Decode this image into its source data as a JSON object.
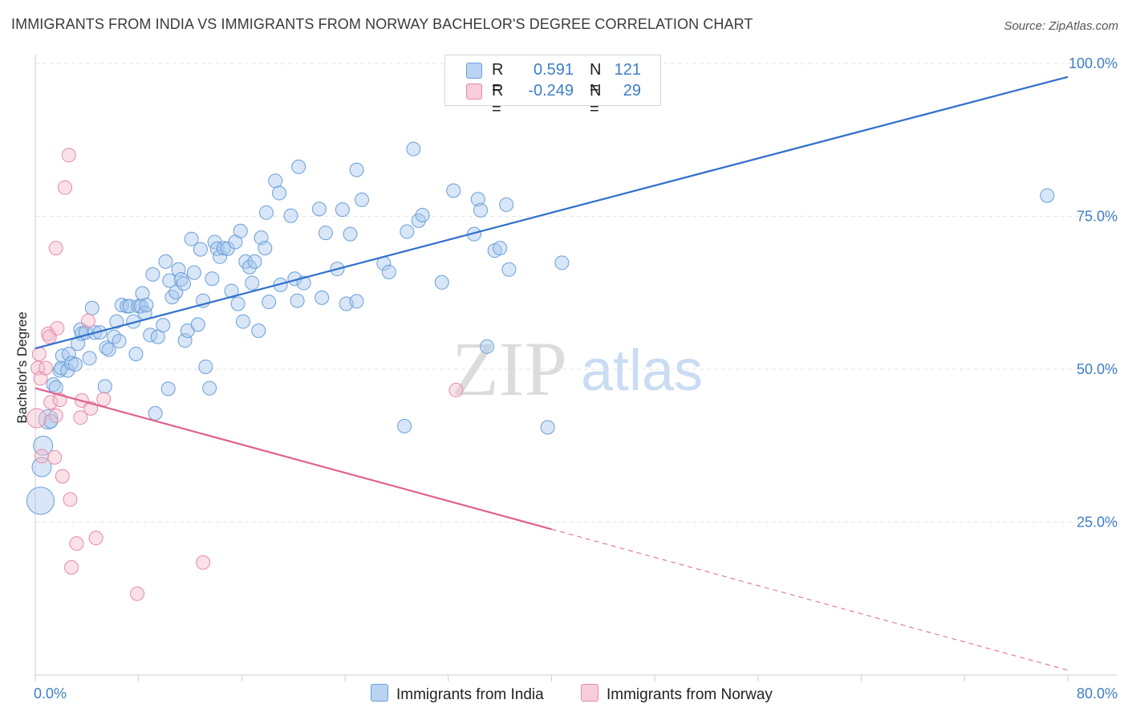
{
  "title": "IMMIGRANTS FROM INDIA VS IMMIGRANTS FROM NORWAY BACHELOR'S DEGREE CORRELATION CHART",
  "source": "Source: ZipAtlas.com",
  "watermark": {
    "zip": "ZIP",
    "atlas": "atlas"
  },
  "colors": {
    "india_fill": "#a9c8ee",
    "india_stroke": "#6a9fd8",
    "india_line": "#2f6fcc",
    "norway_fill": "#f5bccd",
    "norway_stroke": "#e58aa8",
    "norway_line": "#e0628e",
    "tick_text": "#3f7ec6",
    "grid": "#e3e3e3"
  },
  "stats": {
    "india": {
      "r_label": "R =",
      "r_value": "0.591",
      "n_label": "N =",
      "n_value": "121"
    },
    "norway": {
      "r_label": "R =",
      "r_value": "-0.249",
      "n_label": "N =",
      "n_value": "29"
    }
  },
  "legend": {
    "india": "Immigrants from India",
    "norway": "Immigrants from Norway"
  },
  "chart_data": {
    "type": "scatter",
    "title": "IMMIGRANTS FROM INDIA VS IMMIGRANTS FROM NORWAY BACHELOR'S DEGREE CORRELATION CHART",
    "xlabel": "",
    "ylabel": "Bachelor's Degree",
    "xlim": [
      0,
      80
    ],
    "ylim": [
      0,
      100
    ],
    "x_tick_labels": [
      "0.0%",
      "80.0%"
    ],
    "y_ticks": [
      25,
      50,
      75,
      100
    ],
    "y_tick_labels": [
      "25.0%",
      "50.0%",
      "75.0%",
      "100.0%"
    ],
    "grid": true,
    "legend_position": "bottom-center",
    "series": [
      {
        "name": "Immigrants from India",
        "r": 0.591,
        "n": 121,
        "trend": {
          "x": [
            0,
            80
          ],
          "y": [
            53.4,
            97.8
          ]
        },
        "points": [
          [
            0.4,
            28.5,
            3
          ],
          [
            0.5,
            34.0,
            2
          ],
          [
            0.6,
            37.5,
            2
          ],
          [
            1.0,
            41.8,
            2
          ],
          [
            1.2,
            41.5,
            1
          ],
          [
            1.4,
            47.5,
            1
          ],
          [
            1.6,
            47.0,
            1
          ],
          [
            1.9,
            49.8,
            1
          ],
          [
            2.0,
            50.2,
            1
          ],
          [
            2.1,
            52.2,
            1
          ],
          [
            2.5,
            49.8,
            1
          ],
          [
            2.6,
            52.5,
            1
          ],
          [
            2.8,
            51.0,
            1
          ],
          [
            3.1,
            50.8,
            1
          ],
          [
            3.3,
            54.2,
            1
          ],
          [
            3.5,
            56.5,
            1
          ],
          [
            3.6,
            55.8,
            1
          ],
          [
            3.9,
            56.0,
            1
          ],
          [
            4.2,
            51.8,
            1
          ],
          [
            4.4,
            60.0,
            1
          ],
          [
            4.6,
            56.0,
            1
          ],
          [
            5.0,
            56.0,
            1
          ],
          [
            5.4,
            47.2,
            1
          ],
          [
            5.5,
            53.5,
            1
          ],
          [
            5.7,
            53.2,
            1
          ],
          [
            6.1,
            55.3,
            1
          ],
          [
            6.3,
            57.8,
            1
          ],
          [
            6.5,
            54.6,
            1
          ],
          [
            6.7,
            60.5,
            1
          ],
          [
            7.1,
            60.3,
            1
          ],
          [
            7.3,
            60.3,
            1
          ],
          [
            7.6,
            57.8,
            1
          ],
          [
            7.8,
            52.5,
            1
          ],
          [
            8.0,
            60.3,
            1
          ],
          [
            8.2,
            60.3,
            1
          ],
          [
            8.3,
            62.4,
            1
          ],
          [
            8.5,
            59.2,
            1
          ],
          [
            8.6,
            60.5,
            1
          ],
          [
            8.9,
            55.6,
            1
          ],
          [
            9.1,
            65.5,
            1
          ],
          [
            9.3,
            42.8,
            1
          ],
          [
            9.5,
            55.3,
            1
          ],
          [
            9.9,
            57.2,
            1
          ],
          [
            10.1,
            67.6,
            1
          ],
          [
            10.3,
            46.8,
            1
          ],
          [
            10.4,
            64.5,
            1
          ],
          [
            10.6,
            61.8,
            1
          ],
          [
            10.9,
            62.6,
            1
          ],
          [
            11.1,
            66.3,
            1
          ],
          [
            11.3,
            64.7,
            1
          ],
          [
            11.5,
            64.0,
            1
          ],
          [
            11.6,
            54.7,
            1
          ],
          [
            11.8,
            56.3,
            1
          ],
          [
            12.1,
            71.3,
            1
          ],
          [
            12.3,
            65.8,
            1
          ],
          [
            12.6,
            57.3,
            1
          ],
          [
            12.8,
            69.6,
            1
          ],
          [
            13.0,
            61.2,
            1
          ],
          [
            13.2,
            50.4,
            1
          ],
          [
            13.5,
            46.9,
            1
          ],
          [
            13.7,
            64.8,
            1
          ],
          [
            13.9,
            70.8,
            1
          ],
          [
            14.1,
            69.7,
            1
          ],
          [
            14.3,
            68.4,
            1
          ],
          [
            14.6,
            69.8,
            1
          ],
          [
            14.9,
            69.7,
            1
          ],
          [
            15.2,
            62.8,
            1
          ],
          [
            15.5,
            70.8,
            1
          ],
          [
            15.7,
            60.7,
            1
          ],
          [
            15.9,
            72.6,
            1
          ],
          [
            16.1,
            57.8,
            1
          ],
          [
            16.3,
            67.6,
            1
          ],
          [
            16.6,
            66.7,
            1
          ],
          [
            16.8,
            64.1,
            1
          ],
          [
            17.0,
            67.6,
            1
          ],
          [
            17.3,
            56.3,
            1
          ],
          [
            17.5,
            71.5,
            1
          ],
          [
            17.8,
            69.8,
            1
          ],
          [
            17.9,
            75.6,
            1
          ],
          [
            18.1,
            61.0,
            1
          ],
          [
            18.6,
            80.8,
            1
          ],
          [
            18.9,
            78.8,
            1
          ],
          [
            19.0,
            63.8,
            1
          ],
          [
            19.8,
            75.1,
            1
          ],
          [
            20.1,
            64.8,
            1
          ],
          [
            20.3,
            61.2,
            1
          ],
          [
            20.4,
            83.1,
            1
          ],
          [
            20.8,
            64.1,
            1
          ],
          [
            22.0,
            76.2,
            1
          ],
          [
            22.2,
            61.7,
            1
          ],
          [
            22.5,
            72.3,
            1
          ],
          [
            23.4,
            66.4,
            1
          ],
          [
            23.8,
            76.1,
            1
          ],
          [
            24.1,
            60.7,
            1
          ],
          [
            24.4,
            72.1,
            1
          ],
          [
            24.9,
            61.1,
            1
          ],
          [
            24.9,
            82.6,
            1
          ],
          [
            25.3,
            77.7,
            1
          ],
          [
            27.0,
            67.3,
            1
          ],
          [
            27.4,
            65.9,
            1
          ],
          [
            28.6,
            40.7,
            1
          ],
          [
            28.8,
            72.5,
            1
          ],
          [
            29.3,
            86.0,
            1
          ],
          [
            29.7,
            74.3,
            1
          ],
          [
            30.0,
            75.2,
            1
          ],
          [
            31.5,
            64.2,
            1
          ],
          [
            32.4,
            79.2,
            1
          ],
          [
            34.0,
            72.1,
            1
          ],
          [
            34.3,
            77.8,
            1
          ],
          [
            34.5,
            76.0,
            1
          ],
          [
            35.0,
            53.7,
            1
          ],
          [
            35.6,
            69.4,
            1
          ],
          [
            36.0,
            69.8,
            1
          ],
          [
            36.5,
            76.9,
            1
          ],
          [
            36.7,
            66.3,
            1
          ],
          [
            39.7,
            40.5,
            1
          ],
          [
            40.8,
            67.4,
            1
          ],
          [
            78.4,
            78.4,
            1
          ]
        ]
      },
      {
        "name": "Immigrants from Norway",
        "r": -0.249,
        "n": 29,
        "trend": {
          "x": [
            0,
            80
          ],
          "y": [
            46.9,
            0.8
          ]
        },
        "points": [
          [
            0.1,
            42.0,
            2
          ],
          [
            0.2,
            50.2,
            1
          ],
          [
            0.3,
            52.5,
            1
          ],
          [
            0.4,
            48.5,
            1
          ],
          [
            0.5,
            35.8,
            1
          ],
          [
            0.8,
            50.2,
            1
          ],
          [
            1.0,
            55.8,
            1
          ],
          [
            1.1,
            55.3,
            1
          ],
          [
            1.2,
            44.6,
            1
          ],
          [
            1.5,
            35.6,
            1
          ],
          [
            1.6,
            42.4,
            1
          ],
          [
            1.7,
            56.7,
            1
          ],
          [
            1.9,
            45.0,
            1
          ],
          [
            2.1,
            32.5,
            1
          ],
          [
            2.3,
            79.7,
            1
          ],
          [
            2.6,
            85.0,
            1
          ],
          [
            2.7,
            28.7,
            1
          ],
          [
            2.8,
            17.6,
            1
          ],
          [
            3.2,
            21.5,
            1
          ],
          [
            3.5,
            42.1,
            1
          ],
          [
            3.6,
            44.9,
            1
          ],
          [
            4.1,
            57.9,
            1
          ],
          [
            4.3,
            43.6,
            1
          ],
          [
            4.7,
            22.4,
            1
          ],
          [
            5.3,
            45.1,
            1
          ],
          [
            7.9,
            13.3,
            1
          ],
          [
            13.0,
            18.4,
            1
          ],
          [
            32.6,
            46.6,
            1
          ],
          [
            1.6,
            69.8,
            1
          ]
        ]
      }
    ]
  }
}
